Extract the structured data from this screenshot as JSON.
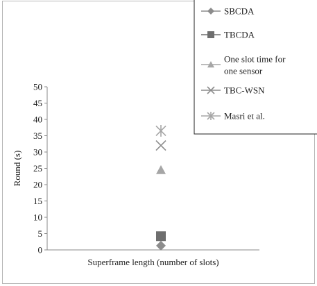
{
  "chart_data": {
    "type": "scatter",
    "ylabel": "Round (s)",
    "xlabel": "Superframe length (number of slots)",
    "ylim": [
      0,
      50
    ],
    "yticks": [
      0,
      5,
      10,
      15,
      20,
      25,
      30,
      35,
      40,
      45,
      50
    ],
    "grid": false,
    "legend_position": "top-right",
    "series": [
      {
        "name": "SBCDA",
        "values": [
          1.3
        ],
        "marker": "diamond",
        "color": "#8c8c8c"
      },
      {
        "name": "TBCDA",
        "values": [
          4.2
        ],
        "marker": "square",
        "color": "#6e6e6e"
      },
      {
        "name": "One slot time for one sensor",
        "legend_lines": [
          "One slot time for",
          "one sensor"
        ],
        "values": [
          24.5
        ],
        "marker": "triangle",
        "color": "#a6a6a6"
      },
      {
        "name": "TBC-WSN",
        "values": [
          32
        ],
        "marker": "x",
        "color": "#8c8c8c"
      },
      {
        "name": "Masri et al.",
        "values": [
          36.5
        ],
        "marker": "asterisk",
        "color": "#a6a6a6"
      }
    ]
  }
}
